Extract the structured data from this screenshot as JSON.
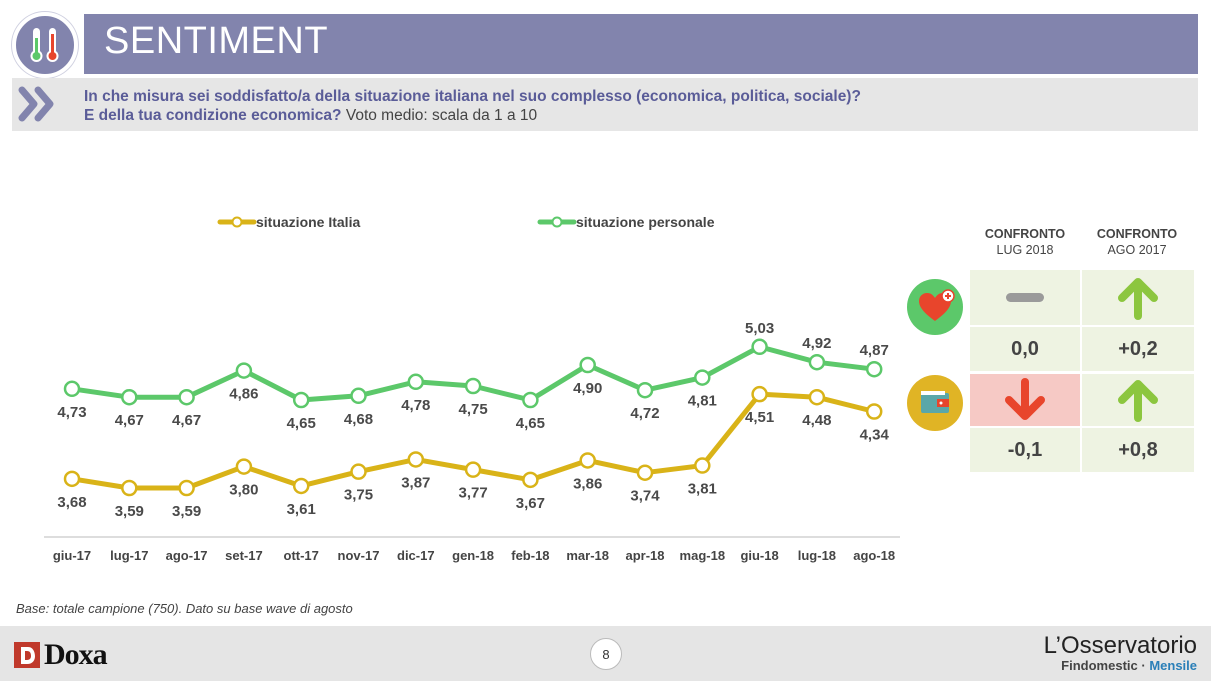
{
  "header": {
    "title": "SENTIMENT"
  },
  "question": {
    "line1": "In che misura sei soddisfatto/a della situazione italiana nel suo complesso (economica, politica, sociale)?",
    "line2_bold": "E della tua condizione economica?",
    "line2_normal": " Voto medio: scala da 1 a 10"
  },
  "chart_data": {
    "type": "line",
    "categories": [
      "giu-17",
      "lug-17",
      "ago-17",
      "set-17",
      "ott-17",
      "nov-17",
      "dic-17",
      "gen-18",
      "feb-18",
      "mar-18",
      "apr-18",
      "mag-18",
      "giu-18",
      "lug-18",
      "ago-18"
    ],
    "series": [
      {
        "name": "situazione Italia",
        "color": "#d9b318",
        "values": [
          3.68,
          3.59,
          3.59,
          3.8,
          3.61,
          3.75,
          3.87,
          3.77,
          3.67,
          3.86,
          3.74,
          3.81,
          4.51,
          4.48,
          4.34
        ],
        "labels": [
          "3,68",
          "3,59",
          "3,59",
          "3,80",
          "3,61",
          "3,75",
          "3,87",
          "3,77",
          "3,67",
          "3,86",
          "3,74",
          "3,81",
          "4,51",
          "4,48",
          "4,34"
        ]
      },
      {
        "name": "situazione personale",
        "color": "#5cc86a",
        "values": [
          4.73,
          4.67,
          4.67,
          4.86,
          4.65,
          4.68,
          4.78,
          4.75,
          4.65,
          4.9,
          4.72,
          4.81,
          5.03,
          4.92,
          4.87
        ],
        "labels": [
          "4,73",
          "4,67",
          "4,67",
          "4,86",
          "4,65",
          "4,68",
          "4,78",
          "4,75",
          "4,65",
          "4,90",
          "4,72",
          "4,81",
          "5,03",
          "4,92",
          "4,87"
        ]
      }
    ],
    "legend_position": "top",
    "grid": false
  },
  "comparison": {
    "col1_head_bold": "CONFRONTO",
    "col1_head": "LUG 2018",
    "col2_head_bold": "CONFRONTO",
    "col2_head": "AGO 2017",
    "rows": [
      {
        "icon": "heart-plus-icon",
        "c1_trend": "flat",
        "c1_value": "0,0",
        "c2_trend": "up",
        "c2_value": "+0,2"
      },
      {
        "icon": "wallet-icon",
        "c1_trend": "down",
        "c1_value": "-0,1",
        "c2_trend": "up",
        "c2_value": "+0,8"
      }
    ],
    "colors": {
      "up": "#8cc63f",
      "down": "#e8452c",
      "flat": "#9a9a9a",
      "cell_bg": "#eef3e2",
      "neg_bg": "#f6c9c5"
    }
  },
  "footer": {
    "base_note": "Base: totale campione (750). Dato su base wave di agosto",
    "page_number": "8",
    "doxa": "Doxa",
    "oss_title": "L’Osservatorio",
    "oss_brand": "Findomestic",
    "oss_sep": " · ",
    "oss_mensile": "Mensile"
  }
}
